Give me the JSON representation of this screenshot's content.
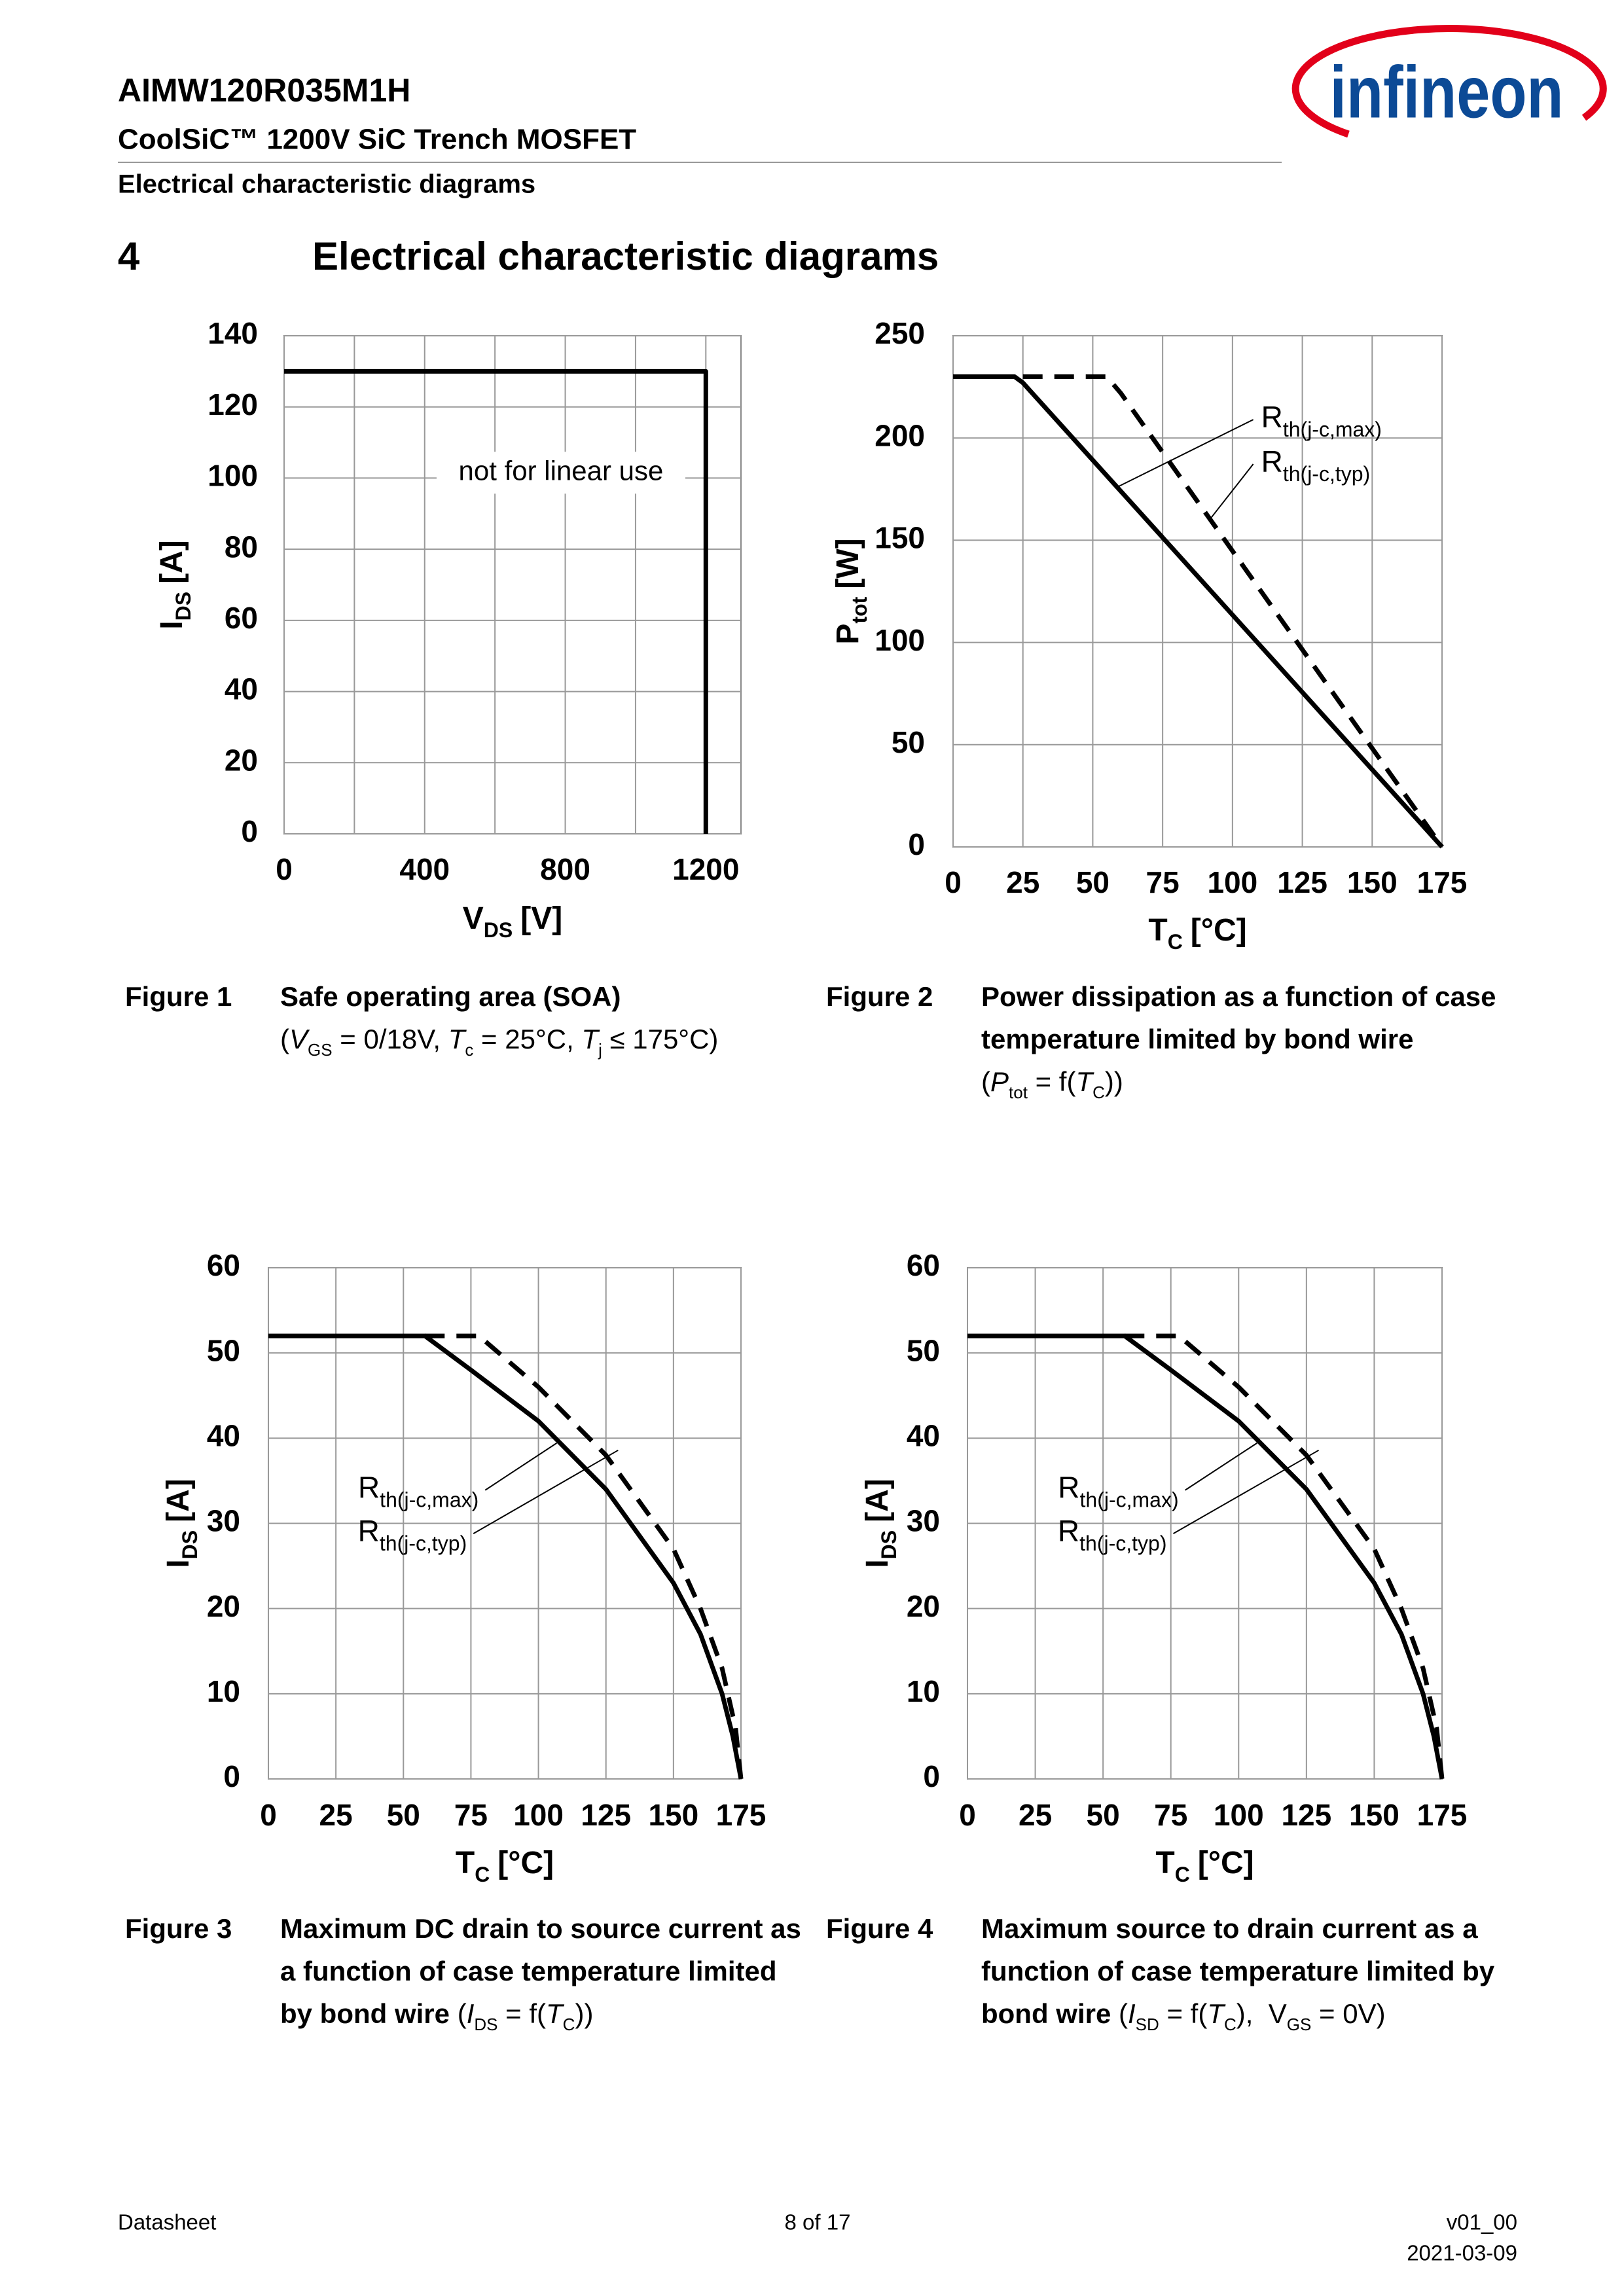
{
  "header": {
    "part": "AIMW120R035M1H",
    "product": "CoolSiC™ 1200V SiC Trench MOSFET",
    "section": "Electrical characteristic diagrams",
    "logo": "infineon"
  },
  "section": {
    "number": "4",
    "title": "Electrical characteristic diagrams"
  },
  "chart_data": [
    {
      "type": "line",
      "xlim": [
        0,
        1300
      ],
      "xticks": [
        0,
        400,
        800,
        1200
      ],
      "xminor_ticks": [
        200,
        600,
        1000
      ],
      "ylim": [
        0,
        140
      ],
      "yticks": [
        0,
        20,
        40,
        60,
        80,
        100,
        120,
        140
      ],
      "grid": true,
      "x_label": {
        "main": "V",
        "sub": "DS",
        "unit": "[V]"
      },
      "y_label": {
        "main": "I",
        "sub": "DS",
        "unit": "[A]"
      },
      "annotation": "not for linear use",
      "series": [
        {
          "color": "#000000",
          "dashed": false,
          "x": [
            0,
            1200,
            1200
          ],
          "values": [
            130,
            130,
            0
          ]
        }
      ]
    },
    {
      "type": "line",
      "xlim": [
        0,
        175
      ],
      "xticks": [
        0,
        25,
        50,
        75,
        100,
        125,
        150,
        175
      ],
      "ylim": [
        0,
        250
      ],
      "yticks": [
        0,
        50,
        100,
        150,
        200,
        250
      ],
      "grid": true,
      "x_label": {
        "main": "T",
        "sub": "C",
        "unit": "[°C]"
      },
      "y_label": {
        "main": "P",
        "sub": "tot",
        "unit": "[W]"
      },
      "series": [
        {
          "name": "R",
          "name_sub": "th(j-c,max)",
          "color": "#000000",
          "dashed": false,
          "x": [
            0,
            22,
            25,
            175
          ],
          "values": [
            230,
            230,
            227,
            0
          ]
        },
        {
          "name": "R",
          "name_sub": "th(j-c,typ)",
          "color": "#000000",
          "dashed": true,
          "x": [
            25,
            55,
            60,
            175
          ],
          "values": [
            230,
            230,
            222,
            0
          ]
        }
      ]
    },
    {
      "type": "line",
      "xlim": [
        0,
        175
      ],
      "xticks": [
        0,
        25,
        50,
        75,
        100,
        125,
        150,
        175
      ],
      "ylim": [
        0,
        60
      ],
      "yticks": [
        0,
        10,
        20,
        30,
        40,
        50,
        60
      ],
      "grid": true,
      "x_label": {
        "main": "T",
        "sub": "C",
        "unit": "[°C]"
      },
      "y_label": {
        "main": "I",
        "sub": "DS",
        "unit": "[A]"
      },
      "series": [
        {
          "name": "R",
          "name_sub": "th(j-c,max)",
          "color": "#000000",
          "dashed": false,
          "x": [
            0,
            58,
            75,
            100,
            125,
            150,
            160,
            168,
            172,
            175
          ],
          "values": [
            52,
            52,
            48,
            42,
            34,
            23,
            17,
            10,
            5,
            0
          ]
        },
        {
          "name": "R",
          "name_sub": "th(j-c,typ)",
          "color": "#000000",
          "dashed": true,
          "x": [
            58,
            78,
            100,
            125,
            150,
            160,
            168,
            173,
            175
          ],
          "values": [
            52,
            52,
            46,
            38,
            27,
            20,
            13,
            6,
            0
          ]
        }
      ]
    },
    {
      "type": "line",
      "xlim": [
        0,
        175
      ],
      "xticks": [
        0,
        25,
        50,
        75,
        100,
        125,
        150,
        175
      ],
      "ylim": [
        0,
        60
      ],
      "yticks": [
        0,
        10,
        20,
        30,
        40,
        50,
        60
      ],
      "grid": true,
      "x_label": {
        "main": "T",
        "sub": "C",
        "unit": "[°C]"
      },
      "y_label": {
        "main": "I",
        "sub": "DS",
        "unit": "[A]"
      },
      "series": [
        {
          "name": "R",
          "name_sub": "th(j-c,max)",
          "color": "#000000",
          "dashed": false,
          "x": [
            0,
            58,
            75,
            100,
            125,
            150,
            160,
            168,
            172,
            175
          ],
          "values": [
            52,
            52,
            48,
            42,
            34,
            23,
            17,
            10,
            5,
            0
          ]
        },
        {
          "name": "R",
          "name_sub": "th(j-c,typ)",
          "color": "#000000",
          "dashed": true,
          "x": [
            58,
            78,
            100,
            125,
            150,
            160,
            168,
            173,
            175
          ],
          "values": [
            52,
            52,
            46,
            38,
            27,
            20,
            13,
            6,
            0
          ]
        }
      ]
    }
  ],
  "figures": [
    {
      "label": "Figure 1",
      "lines": [
        [
          {
            "t": "Safe operating area (SOA)",
            "s": "b"
          }
        ],
        [
          {
            "t": "(",
            "s": "r"
          },
          {
            "t": "V",
            "s": "i"
          },
          {
            "t": "GS",
            "s": "sub"
          },
          {
            "t": " = 0/18V, ",
            "s": "r"
          },
          {
            "t": "T",
            "s": "i"
          },
          {
            "t": "c",
            "s": "sub"
          },
          {
            "t": " = 25°C, ",
            "s": "r"
          },
          {
            "t": "T",
            "s": "i"
          },
          {
            "t": "j",
            "s": "sub"
          },
          {
            "t": " ≤ 175°C)",
            "s": "r"
          }
        ]
      ]
    },
    {
      "label": "Figure 2",
      "lines": [
        [
          {
            "t": "Power dissipation as a function of case",
            "s": "b"
          }
        ],
        [
          {
            "t": "temperature limited by bond wire",
            "s": "b"
          }
        ],
        [
          {
            "t": "(",
            "s": "r"
          },
          {
            "t": "P",
            "s": "i"
          },
          {
            "t": "tot",
            "s": "sub"
          },
          {
            "t": " = f(",
            "s": "r"
          },
          {
            "t": "T",
            "s": "i"
          },
          {
            "t": "C",
            "s": "sub"
          },
          {
            "t": "))",
            "s": "r"
          }
        ]
      ]
    },
    {
      "label": "Figure 3",
      "lines": [
        [
          {
            "t": "Maximum DC drain to source current as",
            "s": "b"
          }
        ],
        [
          {
            "t": "a function of case temperature limited",
            "s": "b"
          }
        ],
        [
          {
            "t": "by bond wire ",
            "s": "b"
          },
          {
            "t": "(",
            "s": "r"
          },
          {
            "t": "I",
            "s": "i"
          },
          {
            "t": "DS",
            "s": "sub"
          },
          {
            "t": " = f(",
            "s": "r"
          },
          {
            "t": "T",
            "s": "i"
          },
          {
            "t": "C",
            "s": "sub"
          },
          {
            "t": "))",
            "s": "r"
          }
        ]
      ]
    },
    {
      "label": "Figure 4",
      "lines": [
        [
          {
            "t": "Maximum source to drain current as a",
            "s": "b"
          }
        ],
        [
          {
            "t": "function of case temperature limited by",
            "s": "b"
          }
        ],
        [
          {
            "t": "bond wire ",
            "s": "b"
          },
          {
            "t": "(",
            "s": "r"
          },
          {
            "t": "I",
            "s": "i"
          },
          {
            "t": "SD",
            "s": "sub"
          },
          {
            "t": " = f(",
            "s": "r"
          },
          {
            "t": "T",
            "s": "i"
          },
          {
            "t": "C",
            "s": "sub"
          },
          {
            "t": "),  V",
            "s": "r"
          },
          {
            "t": "GS",
            "s": "sub"
          },
          {
            "t": " = 0V)",
            "s": "r"
          }
        ]
      ]
    }
  ],
  "footer": {
    "left": "Datasheet",
    "center": "8 of 17",
    "version": "v01_00",
    "date": "2021-03-09"
  }
}
